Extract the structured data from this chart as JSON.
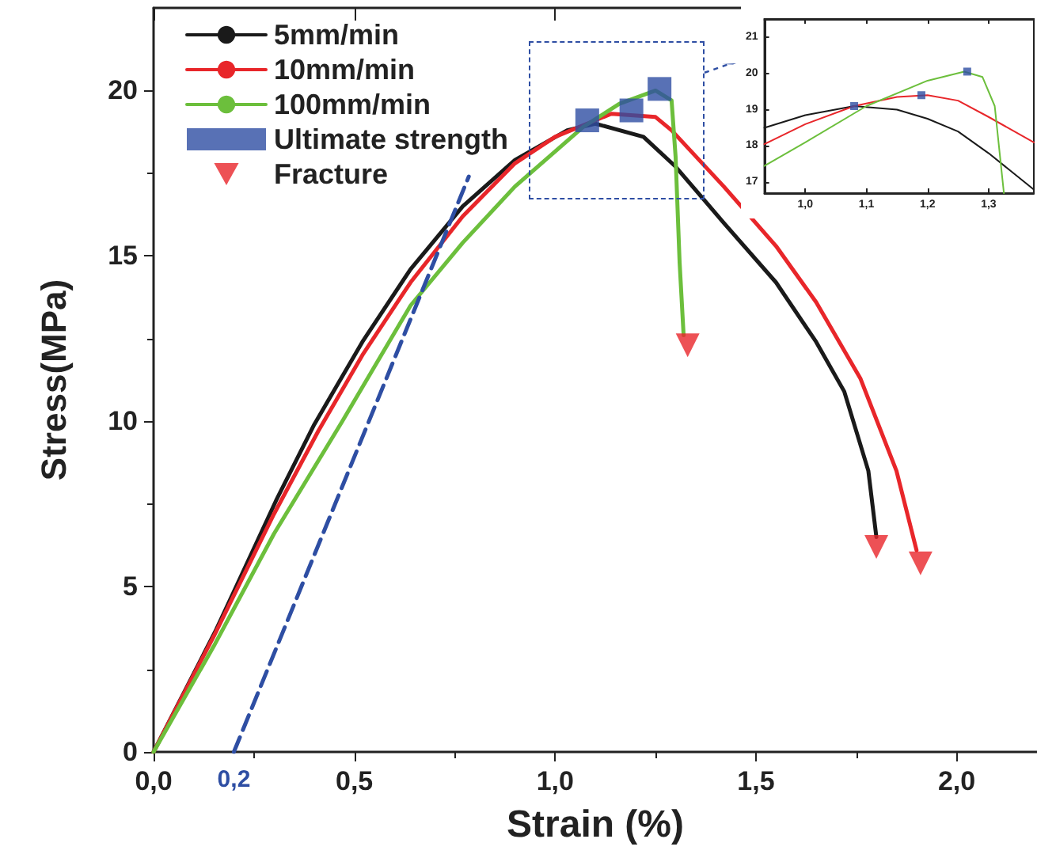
{
  "chart_data": [
    {
      "type": "line",
      "xlabel": "Strain (%)",
      "ylabel": "Stress(MPa)",
      "xlim": [
        0,
        2.2
      ],
      "ylim": [
        0,
        22.5
      ],
      "xticks": [
        {
          "value": 0,
          "label": "0,0"
        },
        {
          "value": 0.5,
          "label": "0,5"
        },
        {
          "value": 1,
          "label": "1,0"
        },
        {
          "value": 1.5,
          "label": "1,5"
        },
        {
          "value": 2,
          "label": "2,0"
        }
      ],
      "yticks": [
        0,
        5,
        10,
        15,
        20
      ],
      "legend": "top left",
      "annotations": [
        {
          "text": "0,2",
          "x": 0.2,
          "y": 0
        }
      ],
      "series": [
        {
          "name": "5mm/min",
          "color": "#1a1a1a",
          "x": [
            0,
            0.156,
            0.305,
            0.4,
            0.52,
            0.64,
            0.77,
            0.9,
            1.03,
            1.1,
            1.22,
            1.3,
            1.42,
            1.55,
            1.65,
            1.72,
            1.78,
            1.8
          ],
          "values": [
            0,
            3.7,
            7.6,
            9.9,
            12.4,
            14.6,
            16.5,
            17.9,
            18.8,
            19.0,
            18.6,
            17.7,
            16.0,
            14.2,
            12.4,
            10.9,
            8.5,
            6.5
          ]
        },
        {
          "name": "10mm/min",
          "color": "#e8262a",
          "x": [
            0,
            0.15,
            0.3,
            0.41,
            0.52,
            0.64,
            0.77,
            0.9,
            1.0,
            1.14,
            1.25,
            1.29,
            1.42,
            1.55,
            1.65,
            1.76,
            1.85,
            1.9
          ],
          "values": [
            0,
            3.5,
            7.2,
            9.7,
            12.0,
            14.2,
            16.2,
            17.8,
            18.6,
            19.3,
            19.2,
            18.8,
            17.1,
            15.3,
            13.6,
            11.3,
            8.5,
            6.1
          ]
        },
        {
          "name": "100mm/min",
          "color": "#6cbf3c",
          "x": [
            0,
            0.15,
            0.3,
            0.47,
            0.64,
            0.77,
            0.9,
            1.07,
            1.16,
            1.25,
            1.29,
            1.3,
            1.31,
            1.32
          ],
          "values": [
            0,
            3.2,
            6.6,
            10.0,
            13.5,
            15.4,
            17.1,
            18.9,
            19.6,
            20.0,
            19.7,
            18.0,
            14.8,
            12.6
          ]
        },
        {
          "type": "line",
          "color": "#2e4ea3",
          "line_style": "dashed",
          "x": [
            0.2,
            0.785
          ],
          "values": [
            0,
            17.4
          ]
        },
        {
          "type": "scatter",
          "name": "Ultimate strength",
          "color": "#2e4ea3",
          "marker": "square",
          "x": [
            1.08,
            1.19,
            1.26
          ],
          "values": [
            19.1,
            19.4,
            20.05
          ]
        },
        {
          "type": "scatter",
          "name": "Fracture",
          "color": "#e8262a",
          "marker": "triangle",
          "x": [
            1.33,
            1.8,
            1.91
          ],
          "values": [
            12.3,
            6.2,
            5.7
          ]
        }
      ]
    },
    {
      "type": "line",
      "xlim": [
        0.933,
        1.374
      ],
      "ylim": [
        16.7,
        21.5
      ],
      "xticks": [
        {
          "value": 1,
          "label": "1,0"
        },
        {
          "value": 1.1,
          "label": "1,1"
        },
        {
          "value": 1.2,
          "label": "1,2"
        },
        {
          "value": 1.3,
          "label": "1,3"
        }
      ],
      "yticks": [
        17,
        18,
        19,
        20,
        21
      ],
      "series": [
        {
          "color": "#1a1a1a",
          "x": [
            0.933,
            1.0,
            1.08,
            1.15,
            1.2,
            1.25,
            1.3,
            1.374
          ],
          "values": [
            18.5,
            18.85,
            19.1,
            19.0,
            18.75,
            18.4,
            17.8,
            16.8
          ]
        },
        {
          "color": "#e8262a",
          "x": [
            0.933,
            1.0,
            1.08,
            1.15,
            1.2,
            1.25,
            1.3,
            1.374
          ],
          "values": [
            18.05,
            18.6,
            19.1,
            19.35,
            19.4,
            19.25,
            18.8,
            18.1
          ]
        },
        {
          "color": "#6cbf3c",
          "x": [
            0.933,
            1.0,
            1.1,
            1.2,
            1.26,
            1.29,
            1.31,
            1.32,
            1.325
          ],
          "values": [
            17.45,
            18.1,
            19.1,
            19.8,
            20.05,
            19.9,
            19.1,
            17.5,
            16.7
          ]
        },
        {
          "type": "scatter",
          "color": "#2e4ea3",
          "marker": "square",
          "x": [
            1.08,
            1.19,
            1.265
          ],
          "values": [
            19.1,
            19.4,
            20.05
          ]
        }
      ]
    }
  ]
}
